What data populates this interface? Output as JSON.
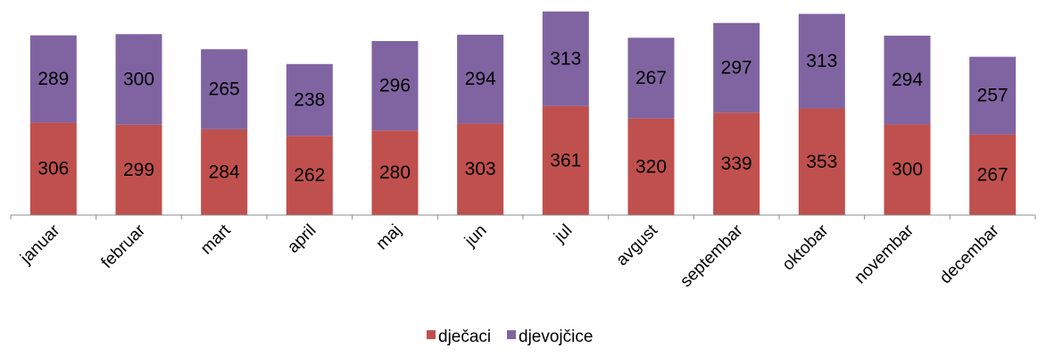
{
  "chart_data": {
    "type": "bar",
    "stacked": true,
    "title": "",
    "xlabel": "",
    "ylabel": "",
    "grid": false,
    "legend_position": "bottom",
    "categories": [
      "januar",
      "februar",
      "mart",
      "april",
      "maj",
      "jun",
      "jul",
      "avgust",
      "septembar",
      "oktobar",
      "novembar",
      "decembar"
    ],
    "series": [
      {
        "name": "dječaci",
        "color": "#C0504D",
        "values": [
          306,
          299,
          284,
          262,
          280,
          303,
          361,
          320,
          339,
          353,
          300,
          267
        ]
      },
      {
        "name": "djevojčice",
        "color": "#8064A2",
        "values": [
          289,
          300,
          265,
          238,
          296,
          294,
          313,
          267,
          297,
          313,
          294,
          257
        ]
      }
    ],
    "ylim": [
      0,
      674
    ]
  }
}
